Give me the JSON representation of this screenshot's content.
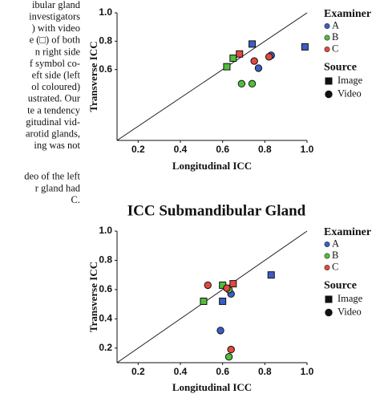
{
  "text_column": {
    "paragraphs": [
      [
        "ibular gland",
        "investigators",
        ") with video",
        "e (□) of both",
        "n right side",
        "f symbol co-",
        "eft side (left",
        "ol coloured)",
        "ustrated. Our",
        "te a tendency",
        "gitudinal vid-",
        "arotid glands,",
        "ing was not"
      ],
      [
        "deo of the left",
        "r gland had",
        "C."
      ]
    ]
  },
  "chart_data": [
    {
      "type": "scatter",
      "x_label": "Longitudinal ICC",
      "y_label": "Transverse ICC",
      "xlim": [
        0.1,
        1.0
      ],
      "ylim": [
        0.1,
        1.0
      ],
      "xticks": [
        0.2,
        0.4,
        0.6,
        0.8,
        {
          "value": 1.0,
          "label": "1.0"
        }
      ],
      "yticks": [
        0.6,
        0.8,
        {
          "value": 1.0,
          "label": "1.0"
        }
      ],
      "legend_title": "Examiner",
      "source_title": "Source",
      "sources": [
        {
          "name": "Image",
          "marker": "square"
        },
        {
          "name": "Video",
          "marker": "circle"
        }
      ],
      "series": [
        {
          "name": "A",
          "color": "#3c5cc8",
          "x": [
            0.74,
            0.99,
            0.77,
            0.83
          ],
          "values": [
            0.78,
            0.76,
            0.61,
            0.7
          ],
          "markers": [
            "square",
            "square",
            "circle",
            "circle"
          ]
        },
        {
          "name": "B",
          "color": "#4fbf3a",
          "x": [
            0.62,
            0.65,
            0.69,
            0.74
          ],
          "values": [
            0.62,
            0.68,
            0.5,
            0.5
          ],
          "markers": [
            "square",
            "square",
            "circle",
            "circle"
          ]
        },
        {
          "name": "C",
          "color": "#e5483f",
          "x": [
            0.68,
            0.75,
            0.82
          ],
          "values": [
            0.71,
            0.66,
            0.69
          ],
          "markers": [
            "square",
            "circle",
            "circle"
          ]
        }
      ]
    },
    {
      "type": "scatter",
      "title": "ICC  Submandibular Gland",
      "x_label": "Longitudinal ICC",
      "y_label": "Transverse ICC",
      "xlim": [
        0.1,
        1.0
      ],
      "ylim": [
        0.1,
        1.0
      ],
      "xticks": [
        0.2,
        0.4,
        0.6,
        0.8,
        {
          "value": 1.0,
          "label": "1.0"
        }
      ],
      "yticks": [
        0.2,
        0.4,
        0.6,
        0.8,
        {
          "value": 1.0,
          "label": "1.0"
        }
      ],
      "legend_title": "Examiner",
      "source_title": "Source",
      "sources": [
        {
          "name": "Image",
          "marker": "square"
        },
        {
          "name": "Video",
          "marker": "circle"
        }
      ],
      "series": [
        {
          "name": "A",
          "color": "#3c5cc8",
          "x": [
            0.6,
            0.83,
            0.59,
            0.64
          ],
          "values": [
            0.52,
            0.7,
            0.32,
            0.57
          ],
          "markers": [
            "square",
            "square",
            "circle",
            "circle"
          ]
        },
        {
          "name": "B",
          "color": "#4fbf3a",
          "x": [
            0.51,
            0.6,
            0.63,
            0.63
          ],
          "values": [
            0.52,
            0.63,
            0.6,
            0.14
          ],
          "markers": [
            "square",
            "square",
            "circle",
            "circle"
          ]
        },
        {
          "name": "C",
          "color": "#e5483f",
          "x": [
            0.65,
            0.53,
            0.64,
            0.62
          ],
          "values": [
            0.64,
            0.63,
            0.19,
            0.61
          ],
          "markers": [
            "square",
            "circle",
            "circle",
            "circle"
          ]
        }
      ]
    }
  ]
}
